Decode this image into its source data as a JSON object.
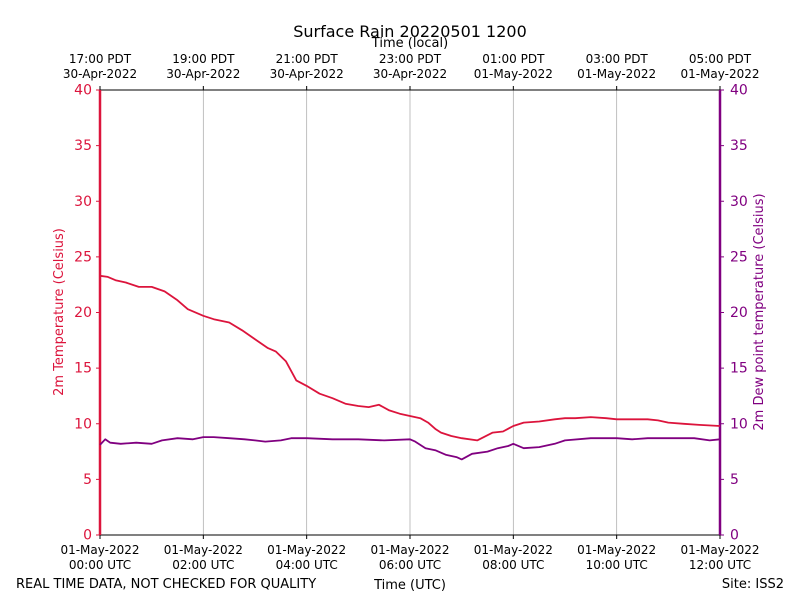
{
  "chart_data": {
    "type": "line",
    "title": "Surface Rain 20220501 1200",
    "top_axis_label": "Time (local)",
    "xlabel": "Time (UTC)",
    "ylabel_left": "2m Temperature (Celsius)",
    "ylabel_right": "2m Dew point temperature (Celsius)",
    "footer_left": "REAL TIME DATA, NOT CHECKED FOR QUALITY",
    "footer_right": "Site: ISS2",
    "x_range_hours_utc": [
      0,
      12
    ],
    "y_range_left": [
      0,
      40
    ],
    "y_range_right": [
      0,
      40
    ],
    "y_ticks": [
      0,
      5,
      10,
      15,
      20,
      25,
      30,
      35,
      40
    ],
    "grid_vertical": true,
    "grid_horizontal": false,
    "bottom_ticks": [
      {
        "hour": 0,
        "line1": "01-May-2022",
        "line2": "00:00 UTC"
      },
      {
        "hour": 2,
        "line1": "01-May-2022",
        "line2": "02:00 UTC"
      },
      {
        "hour": 4,
        "line1": "01-May-2022",
        "line2": "04:00 UTC"
      },
      {
        "hour": 6,
        "line1": "01-May-2022",
        "line2": "06:00 UTC"
      },
      {
        "hour": 8,
        "line1": "01-May-2022",
        "line2": "08:00 UTC"
      },
      {
        "hour": 10,
        "line1": "01-May-2022",
        "line2": "10:00 UTC"
      },
      {
        "hour": 12,
        "line1": "01-May-2022",
        "line2": "12:00 UTC"
      }
    ],
    "top_ticks": [
      {
        "hour": 0,
        "line1": "17:00 PDT",
        "line2": "30-Apr-2022"
      },
      {
        "hour": 2,
        "line1": "19:00 PDT",
        "line2": "30-Apr-2022"
      },
      {
        "hour": 4,
        "line1": "21:00 PDT",
        "line2": "30-Apr-2022"
      },
      {
        "hour": 6,
        "line1": "23:00 PDT",
        "line2": "30-Apr-2022"
      },
      {
        "hour": 8,
        "line1": "01:00 PDT",
        "line2": "01-May-2022"
      },
      {
        "hour": 10,
        "line1": "03:00 PDT",
        "line2": "01-May-2022"
      },
      {
        "hour": 12,
        "line1": "05:00 PDT",
        "line2": "01-May-2022"
      }
    ],
    "colors": {
      "temperature": "#dc143c",
      "dewpoint": "#800080",
      "grid": "#b0b0b0",
      "axis": "#000000"
    },
    "series": [
      {
        "key": "temperature",
        "axis": "left",
        "x": [
          0.0,
          0.15,
          0.3,
          0.5,
          0.75,
          1.0,
          1.25,
          1.5,
          1.7,
          2.0,
          2.2,
          2.5,
          2.75,
          3.0,
          3.25,
          3.4,
          3.6,
          3.8,
          4.0,
          4.25,
          4.5,
          4.75,
          5.0,
          5.2,
          5.4,
          5.6,
          5.8,
          6.0,
          6.2,
          6.35,
          6.5,
          6.6,
          6.8,
          7.0,
          7.3,
          7.6,
          7.8,
          8.0,
          8.2,
          8.5,
          8.8,
          9.0,
          9.2,
          9.5,
          9.8,
          10.0,
          10.3,
          10.6,
          10.8,
          11.0,
          11.3,
          11.6,
          12.0
        ],
        "values": [
          23.3,
          23.2,
          22.9,
          22.7,
          22.3,
          22.3,
          21.9,
          21.1,
          20.3,
          19.7,
          19.4,
          19.1,
          18.4,
          17.6,
          16.8,
          16.5,
          15.6,
          13.9,
          13.4,
          12.7,
          12.3,
          11.8,
          11.6,
          11.5,
          11.7,
          11.2,
          10.9,
          10.7,
          10.5,
          10.1,
          9.5,
          9.2,
          8.9,
          8.7,
          8.5,
          9.2,
          9.3,
          9.8,
          10.1,
          10.2,
          10.4,
          10.5,
          10.5,
          10.6,
          10.5,
          10.4,
          10.4,
          10.4,
          10.3,
          10.1,
          10.0,
          9.9,
          9.8
        ]
      },
      {
        "key": "dewpoint",
        "axis": "right",
        "x": [
          0.0,
          0.1,
          0.2,
          0.4,
          0.7,
          1.0,
          1.2,
          1.5,
          1.8,
          2.0,
          2.2,
          2.5,
          2.8,
          3.0,
          3.2,
          3.5,
          3.7,
          4.0,
          4.5,
          5.0,
          5.5,
          6.0,
          6.1,
          6.3,
          6.5,
          6.7,
          6.9,
          7.0,
          7.2,
          7.5,
          7.7,
          7.9,
          8.0,
          8.2,
          8.5,
          8.8,
          9.0,
          9.5,
          10.0,
          10.3,
          10.6,
          11.0,
          11.5,
          11.8,
          12.0
        ],
        "values": [
          8.1,
          8.6,
          8.3,
          8.2,
          8.3,
          8.2,
          8.5,
          8.7,
          8.6,
          8.8,
          8.8,
          8.7,
          8.6,
          8.5,
          8.4,
          8.5,
          8.7,
          8.7,
          8.6,
          8.6,
          8.5,
          8.6,
          8.4,
          7.8,
          7.6,
          7.2,
          7.0,
          6.8,
          7.3,
          7.5,
          7.8,
          8.0,
          8.2,
          7.8,
          7.9,
          8.2,
          8.5,
          8.7,
          8.7,
          8.6,
          8.7,
          8.7,
          8.7,
          8.5,
          8.6
        ]
      }
    ]
  }
}
